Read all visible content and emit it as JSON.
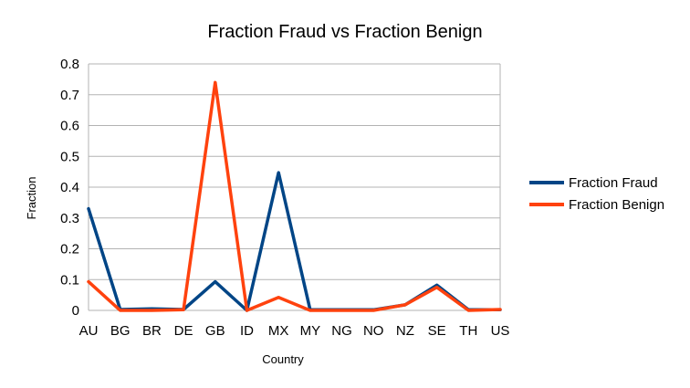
{
  "chart_data": {
    "type": "line",
    "title": "Fraction Fraud vs Fraction Benign",
    "xlabel": "Country",
    "ylabel": "Fraction",
    "categories": [
      "AU",
      "BG",
      "BR",
      "DE",
      "GB",
      "ID",
      "MX",
      "MY",
      "NG",
      "NO",
      "NZ",
      "SE",
      "TH",
      "US"
    ],
    "ylim": [
      0,
      0.8
    ],
    "yticks": [
      "0",
      "0.1",
      "0.2",
      "0.3",
      "0.4",
      "0.5",
      "0.6",
      "0.7",
      "0.8"
    ],
    "grid": true,
    "legend": "right",
    "series": [
      {
        "name": "Fraction Fraud",
        "color": "#004586",
        "values": [
          0.33,
          0.003,
          0.005,
          0.003,
          0.093,
          0.0,
          0.447,
          0.002,
          0.002,
          0.002,
          0.018,
          0.082,
          0.002,
          0.002
        ]
      },
      {
        "name": "Fraction Benign",
        "color": "#ff420e",
        "values": [
          0.093,
          0.0,
          0.0,
          0.002,
          0.74,
          0.0,
          0.042,
          0.0,
          0.0,
          0.0,
          0.018,
          0.075,
          0.0,
          0.003
        ]
      }
    ]
  }
}
